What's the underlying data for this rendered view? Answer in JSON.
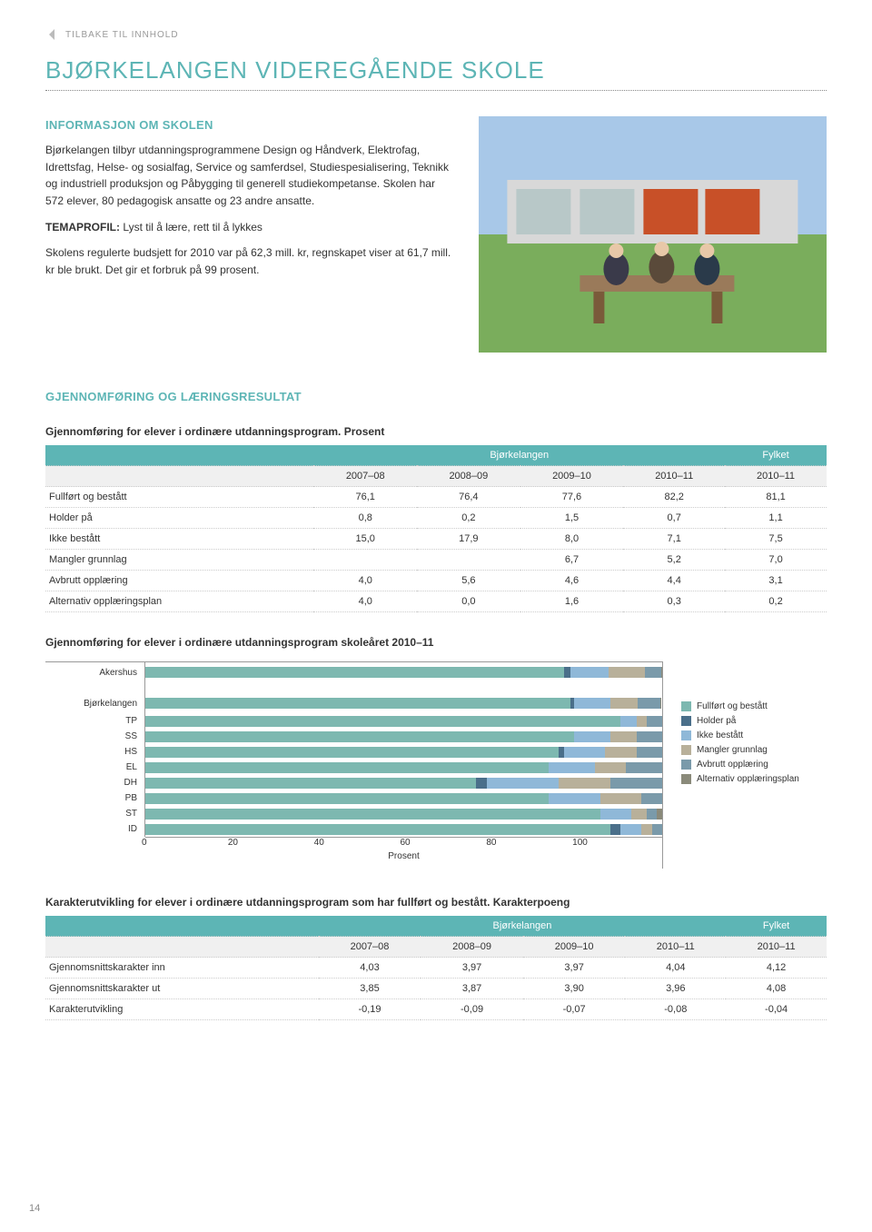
{
  "nav": {
    "back_label": "TILBAKE TIL INNHOLD"
  },
  "title": "BJØRKELANGEN VIDEREGÅENDE SKOLE",
  "intro": {
    "heading": "INFORMASJON OM SKOLEN",
    "p1": "Bjørkelangen tilbyr utdanningsprogrammene Design og Håndverk, Elektrofag, Idrettsfag, Helse- og sosialfag, Service og samferdsel, Studiespesialisering, Teknikk og industriell produksjon og Påbygging til generell studiekompetanse. Skolen har 572 elever, 80 pedagogisk ansatte og 23 andre ansatte.",
    "temaprofil_label": "TEMAPROFIL:",
    "temaprofil_text": " Lyst til å lære, rett til å lykkes",
    "p3": "Skolens regulerte budsjett for 2010 var på 62,3 mill. kr, regnskapet viser at 61,7 mill. kr ble brukt. Det gir et forbruk på 99 prosent."
  },
  "results_heading": "GJENNOMFØRING OG LÆRINGSRESULTAT",
  "table1": {
    "caption": "Gjennomføring for elever i ordinære utdanningsprogram. Prosent",
    "group_headers": [
      "Bjørkelangen",
      "Fylket"
    ],
    "years": [
      "2007–08",
      "2008–09",
      "2009–10",
      "2010–11",
      "2010–11"
    ],
    "rows": [
      {
        "label": "Fullført og bestått",
        "vals": [
          "76,1",
          "76,4",
          "77,6",
          "82,2",
          "81,1"
        ]
      },
      {
        "label": "Holder på",
        "vals": [
          "0,8",
          "0,2",
          "1,5",
          "0,7",
          "1,1"
        ]
      },
      {
        "label": "Ikke bestått",
        "vals": [
          "15,0",
          "17,9",
          "8,0",
          "7,1",
          "7,5"
        ]
      },
      {
        "label": "Mangler grunnlag",
        "vals": [
          "",
          "",
          "6,7",
          "5,2",
          "7,0"
        ]
      },
      {
        "label": "Avbrutt opplæring",
        "vals": [
          "4,0",
          "5,6",
          "4,6",
          "4,4",
          "3,1"
        ]
      },
      {
        "label": "Alternativ opplæringsplan",
        "vals": [
          "4,0",
          "0,0",
          "1,6",
          "0,3",
          "0,2"
        ]
      }
    ]
  },
  "chart": {
    "title": "Gjennomføring for elever i ordinære utdanningsprogram skoleåret 2010–11",
    "type": "stacked-horizontal-bar",
    "xmax": 100,
    "xtick_step": 20,
    "xticks": [
      "0",
      "20",
      "40",
      "60",
      "80",
      "100"
    ],
    "xlabel": "Prosent",
    "colors": {
      "fullfort": "#7db8b0",
      "holder": "#4a6f8a",
      "ikke": "#8fb8d8",
      "mangler": "#b8b09a",
      "avbrutt": "#7a9aaa",
      "alternativ": "#8a8a7a"
    },
    "legend": [
      {
        "label": "Fullført og bestått",
        "key": "fullfort"
      },
      {
        "label": "Holder på",
        "key": "holder"
      },
      {
        "label": "Ikke bestått",
        "key": "ikke"
      },
      {
        "label": "Mangler grunnlag",
        "key": "mangler"
      },
      {
        "label": "Avbrutt opplæring",
        "key": "avbrutt"
      },
      {
        "label": "Alternativ opplæringsplan",
        "key": "alternativ"
      }
    ],
    "rows": [
      {
        "label": "Akershus",
        "big": true,
        "segs": [
          81.1,
          1.1,
          7.5,
          7.0,
          3.1,
          0.2
        ]
      },
      {
        "label": "Bjørkelangen",
        "big": true,
        "segs": [
          82.2,
          0.7,
          7.1,
          5.2,
          4.4,
          0.3
        ]
      },
      {
        "label": "TP",
        "segs": [
          92,
          0,
          3,
          2,
          3,
          0
        ]
      },
      {
        "label": "SS",
        "segs": [
          83,
          0,
          7,
          5,
          5,
          0
        ]
      },
      {
        "label": "HS",
        "segs": [
          80,
          1,
          8,
          6,
          5,
          0
        ]
      },
      {
        "label": "EL",
        "segs": [
          78,
          0,
          9,
          6,
          7,
          0
        ]
      },
      {
        "label": "DH",
        "segs": [
          64,
          2,
          14,
          10,
          10,
          0
        ]
      },
      {
        "label": "PB",
        "segs": [
          78,
          0,
          10,
          8,
          4,
          0
        ]
      },
      {
        "label": "ST",
        "segs": [
          88,
          0,
          6,
          3,
          2,
          1
        ]
      },
      {
        "label": "ID",
        "segs": [
          90,
          2,
          4,
          2,
          2,
          0
        ]
      }
    ]
  },
  "table2": {
    "caption": "Karakterutvikling for elever i ordinære utdanningsprogram som har fullført og bestått. Karakterpoeng",
    "group_headers": [
      "Bjørkelangen",
      "Fylket"
    ],
    "years": [
      "2007–08",
      "2008–09",
      "2009–10",
      "2010–11",
      "2010–11"
    ],
    "rows": [
      {
        "label": "Gjennomsnittskarakter inn",
        "vals": [
          "4,03",
          "3,97",
          "3,97",
          "4,04",
          "4,12"
        ]
      },
      {
        "label": "Gjennomsnittskarakter ut",
        "vals": [
          "3,85",
          "3,87",
          "3,90",
          "3,96",
          "4,08"
        ]
      },
      {
        "label": "Karakterutvikling",
        "vals": [
          "-0,19",
          "-0,09",
          "-0,07",
          "-0,08",
          "-0,04"
        ]
      }
    ]
  },
  "page_number": "14"
}
